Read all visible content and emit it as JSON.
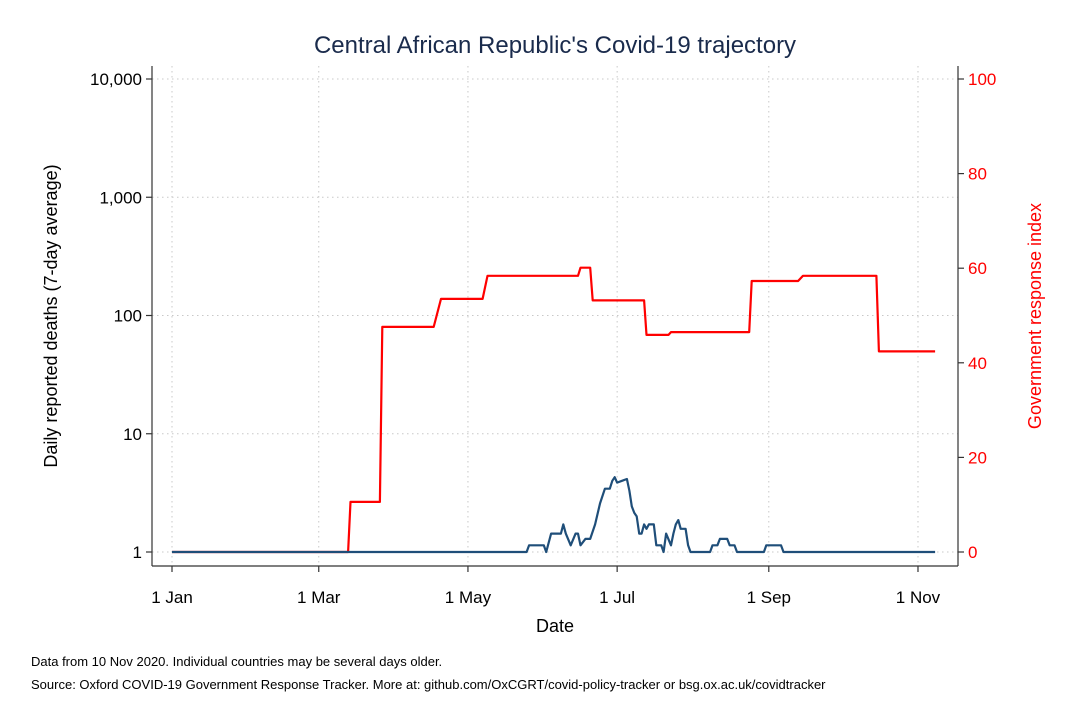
{
  "chart_data": {
    "type": "line",
    "title": "Central African Republic's Covid-19 trajectory",
    "xlabel": "Date",
    "ylabel_left": "Daily reported deaths (7-day average)",
    "ylabel_right": "Government response index",
    "x_range": [
      "2020-01-01",
      "2020-11-10"
    ],
    "x_ticks": [
      {
        "date": "2020-01-01",
        "label": "1 Jan"
      },
      {
        "date": "2020-03-01",
        "label": "1 Mar"
      },
      {
        "date": "2020-05-01",
        "label": "1 May"
      },
      {
        "date": "2020-07-01",
        "label": "1 Jul"
      },
      {
        "date": "2020-09-01",
        "label": "1 Sep"
      },
      {
        "date": "2020-11-01",
        "label": "1 Nov"
      }
    ],
    "y_left": {
      "scale": "log",
      "ylim": [
        1,
        10000
      ],
      "ticks": [
        1,
        10,
        100,
        1000,
        10000
      ],
      "tick_labels": [
        "1",
        "10",
        "100",
        "1,000",
        "10,000"
      ]
    },
    "y_right": {
      "scale": "linear",
      "ylim": [
        0,
        100
      ],
      "ticks": [
        0,
        20,
        40,
        60,
        80,
        100
      ],
      "tick_labels": [
        "0",
        "20",
        "40",
        "60",
        "80",
        "100"
      ]
    },
    "grid": true,
    "colors": {
      "deaths": "#1f4e79",
      "index": "#ff0000",
      "grid": "#c8c8c8",
      "axis": "#333333"
    },
    "series": [
      {
        "axis": "right",
        "color": "#ff0000",
        "points": [
          [
            "2020-01-01",
            0
          ],
          [
            "2020-03-13",
            0
          ],
          [
            "2020-03-14",
            10.6
          ],
          [
            "2020-03-26",
            10.6
          ],
          [
            "2020-03-27",
            47.6
          ],
          [
            "2020-04-17",
            47.6
          ],
          [
            "2020-04-20",
            53.5
          ],
          [
            "2020-05-07",
            53.5
          ],
          [
            "2020-05-09",
            58.4
          ],
          [
            "2020-06-15",
            58.4
          ],
          [
            "2020-06-16",
            60.1
          ],
          [
            "2020-06-20",
            60.1
          ],
          [
            "2020-06-21",
            53.2
          ],
          [
            "2020-07-12",
            53.2
          ],
          [
            "2020-07-13",
            45.9
          ],
          [
            "2020-07-22",
            45.9
          ],
          [
            "2020-07-23",
            46.5
          ],
          [
            "2020-08-24",
            46.5
          ],
          [
            "2020-08-25",
            57.3
          ],
          [
            "2020-09-13",
            57.3
          ],
          [
            "2020-09-15",
            58.4
          ],
          [
            "2020-10-15",
            58.4
          ],
          [
            "2020-10-16",
            42.4
          ],
          [
            "2020-11-08",
            42.4
          ]
        ]
      },
      {
        "axis": "left",
        "color": "#1f4e79",
        "points": [
          [
            "2020-01-01",
            1
          ],
          [
            "2020-05-25",
            1
          ],
          [
            "2020-05-26",
            1.14
          ],
          [
            "2020-06-01",
            1.14
          ],
          [
            "2020-06-02",
            1
          ],
          [
            "2020-06-04",
            1.43
          ],
          [
            "2020-06-08",
            1.43
          ],
          [
            "2020-06-09",
            1.71
          ],
          [
            "2020-06-10",
            1.43
          ],
          [
            "2020-06-12",
            1.14
          ],
          [
            "2020-06-14",
            1.43
          ],
          [
            "2020-06-15",
            1.43
          ],
          [
            "2020-06-16",
            1.14
          ],
          [
            "2020-06-18",
            1.29
          ],
          [
            "2020-06-20",
            1.29
          ],
          [
            "2020-06-22",
            1.71
          ],
          [
            "2020-06-24",
            2.57
          ],
          [
            "2020-06-26",
            3.43
          ],
          [
            "2020-06-28",
            3.43
          ],
          [
            "2020-06-29",
            4.0
          ],
          [
            "2020-06-30",
            4.29
          ],
          [
            "2020-07-01",
            3.86
          ],
          [
            "2020-07-03",
            4.0
          ],
          [
            "2020-07-05",
            4.14
          ],
          [
            "2020-07-06",
            3.29
          ],
          [
            "2020-07-07",
            2.43
          ],
          [
            "2020-07-08",
            2.14
          ],
          [
            "2020-07-09",
            2.0
          ],
          [
            "2020-07-10",
            1.43
          ],
          [
            "2020-07-11",
            1.43
          ],
          [
            "2020-07-12",
            1.71
          ],
          [
            "2020-07-13",
            1.57
          ],
          [
            "2020-07-14",
            1.71
          ],
          [
            "2020-07-16",
            1.71
          ],
          [
            "2020-07-17",
            1.14
          ],
          [
            "2020-07-19",
            1.14
          ],
          [
            "2020-07-20",
            1
          ],
          [
            "2020-07-21",
            1.43
          ],
          [
            "2020-07-23",
            1.14
          ],
          [
            "2020-07-24",
            1.43
          ],
          [
            "2020-07-25",
            1.71
          ],
          [
            "2020-07-26",
            1.86
          ],
          [
            "2020-07-27",
            1.57
          ],
          [
            "2020-07-29",
            1.57
          ],
          [
            "2020-07-30",
            1.14
          ],
          [
            "2020-07-31",
            1
          ],
          [
            "2020-08-08",
            1
          ],
          [
            "2020-08-09",
            1.14
          ],
          [
            "2020-08-11",
            1.14
          ],
          [
            "2020-08-12",
            1.29
          ],
          [
            "2020-08-15",
            1.29
          ],
          [
            "2020-08-16",
            1.14
          ],
          [
            "2020-08-18",
            1.14
          ],
          [
            "2020-08-19",
            1
          ],
          [
            "2020-08-30",
            1
          ],
          [
            "2020-08-31",
            1.14
          ],
          [
            "2020-09-06",
            1.14
          ],
          [
            "2020-09-07",
            1
          ],
          [
            "2020-11-08",
            1
          ]
        ]
      }
    ],
    "notes": [
      "Data from 10 Nov 2020. Individual countries may be several days older.",
      "Source: Oxford COVID-19 Government Response Tracker. More at: github.com/OxCGRT/covid-policy-tracker or bsg.ox.ac.uk/covidtracker"
    ]
  }
}
